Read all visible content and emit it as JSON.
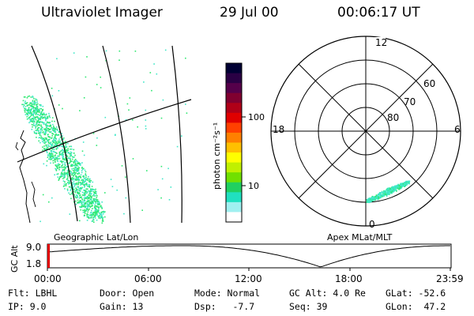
{
  "header": {
    "instrument": "Ultraviolet Imager",
    "date": "29 Jul 00",
    "time": "00:06:17 UT"
  },
  "colorbar": {
    "unit_label": "photon cm⁻²s⁻¹",
    "ticks": [
      "100",
      "10"
    ],
    "colors": [
      "#000033",
      "#2a0044",
      "#55004a",
      "#800030",
      "#b00018",
      "#e00000",
      "#ff4000",
      "#ff8000",
      "#ffc000",
      "#ffff00",
      "#c0f000",
      "#70e000",
      "#20d060",
      "#20e0c0",
      "#a0f0f0",
      "#ffffff"
    ]
  },
  "geo_map": {
    "label": "Geographic Lat/Lon"
  },
  "polar": {
    "label": "Apex MLat/MLT",
    "mlt_labels": {
      "top": "12",
      "left": "18",
      "right": "6",
      "bottom": "0"
    },
    "lat_labels": [
      "60",
      "70",
      "80"
    ]
  },
  "altitude_plot": {
    "ylabel": "GC Alt",
    "yticks": [
      "9.0",
      "1.8"
    ],
    "xticks": [
      "00:00",
      "06:00",
      "12:00",
      "18:00",
      "23:59"
    ],
    "marker_time": "00:06"
  },
  "info": {
    "row1": {
      "filter": "Flt: LBHL",
      "door": "Door: Open",
      "mode": "Mode: Normal",
      "gc_alt": "GC Alt: 4.0 Re",
      "glat": "GLat: -52.6"
    },
    "row2": {
      "ip": "IP: 9.0",
      "gain": "Gain: 13",
      "dsp": "Dsp:   -7.7",
      "seq": "Seq: 39",
      "glon": "GLon:  47.2"
    }
  },
  "colors": {
    "aurora_green": "#2ee870",
    "aurora_cyan": "#40e8c8",
    "marker_red": "#e00000"
  }
}
